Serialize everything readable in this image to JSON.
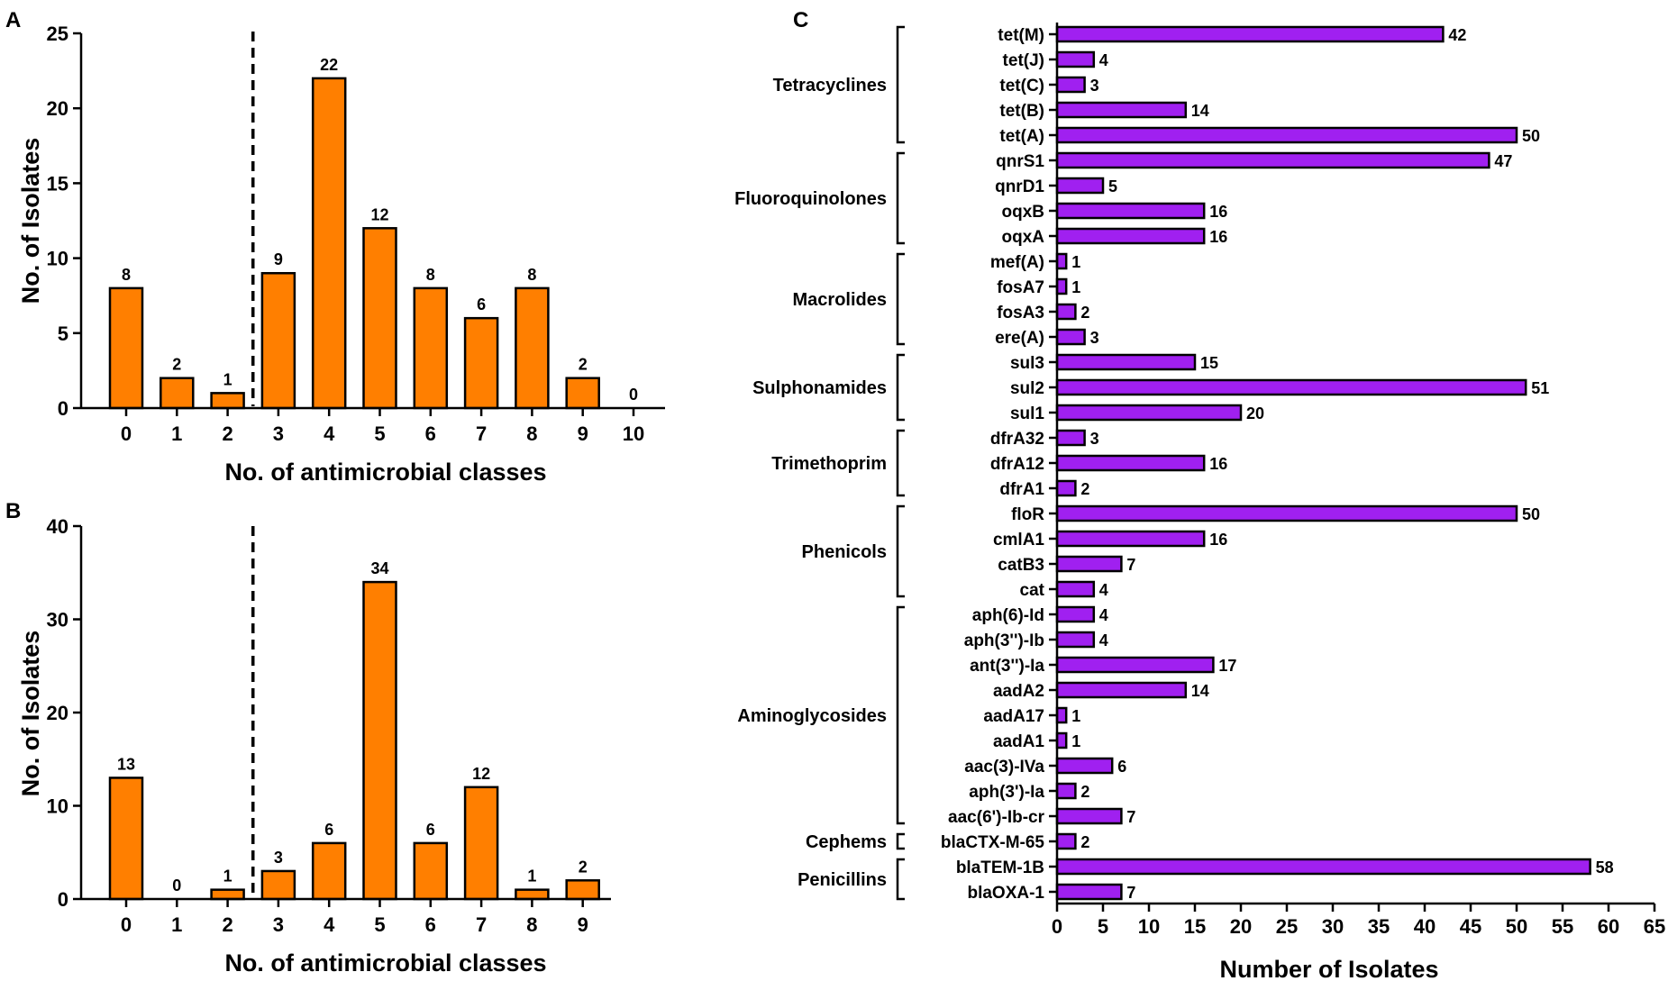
{
  "figure": {
    "panel_a_letter": "A",
    "panel_b_letter": "B",
    "panel_c_letter": "C",
    "bar_colors": {
      "orange": "#FF7F00",
      "purple": "#A020F0"
    }
  },
  "chart_data": [
    {
      "id": "A",
      "type": "bar",
      "categories": [
        "0",
        "1",
        "2",
        "3",
        "4",
        "5",
        "6",
        "7",
        "8",
        "9",
        "10"
      ],
      "values": [
        8,
        2,
        1,
        9,
        22,
        12,
        8,
        6,
        8,
        2,
        0
      ],
      "data_labels": [
        "8",
        "2",
        "1",
        "9",
        "22",
        "12",
        "8",
        "6",
        "8",
        "2",
        "0"
      ],
      "title": "",
      "xlabel": "No. of antimicrobial classes",
      "ylabel": "No. of Isolates",
      "ylim": [
        0,
        25
      ],
      "yticks": [
        "0",
        "5",
        "10",
        "15",
        "20",
        "25"
      ],
      "cutoff_between": [
        2,
        3
      ],
      "cutoff_style": "dashed vertical line",
      "color": "#FF7F00"
    },
    {
      "id": "B",
      "type": "bar",
      "categories": [
        "0",
        "1",
        "2",
        "3",
        "4",
        "5",
        "6",
        "7",
        "8",
        "9"
      ],
      "values": [
        13,
        0,
        1,
        3,
        6,
        34,
        6,
        12,
        1,
        2
      ],
      "data_labels": [
        "13",
        "0",
        "1",
        "3",
        "6",
        "34",
        "6",
        "12",
        "1",
        "2"
      ],
      "title": "",
      "xlabel": "No. of antimicrobial classes",
      "ylabel": "No. of Isolates",
      "ylim": [
        0,
        40
      ],
      "yticks": [
        "0",
        "10",
        "20",
        "30",
        "40"
      ],
      "cutoff_between": [
        2,
        3
      ],
      "cutoff_style": "dashed vertical line",
      "color": "#FF7F00"
    },
    {
      "id": "C",
      "type": "bar",
      "orientation": "horizontal",
      "categories": [
        "tet(M)",
        "tet(J)",
        "tet(C)",
        "tet(B)",
        "tet(A)",
        "qnrS1",
        "qnrD1",
        "oqxB",
        "oqxA",
        "mef(A)",
        "fosA7",
        "fosA3",
        "ere(A)",
        "sul3",
        "sul2",
        "sul1",
        "dfrA32",
        "dfrA12",
        "dfrA1",
        "floR",
        "cmlA1",
        "catB3",
        "cat",
        "aph(6)-Id",
        "aph(3'')-Ib",
        "ant(3'')-Ia",
        "aadA2",
        "aadA17",
        "aadA1",
        "aac(3)-IVa",
        "aph(3')-Ia",
        "aac(6')-Ib-cr",
        "blaCTX-M-65",
        "blaTEM-1B",
        "blaOXA-1"
      ],
      "values": [
        42,
        4,
        3,
        14,
        50,
        47,
        5,
        16,
        16,
        1,
        1,
        2,
        3,
        15,
        51,
        20,
        3,
        16,
        2,
        50,
        16,
        7,
        4,
        4,
        4,
        17,
        14,
        1,
        1,
        6,
        2,
        7,
        2,
        58,
        7
      ],
      "data_labels": [
        "42",
        "4",
        "3",
        "14",
        "50",
        "47",
        "5",
        "16",
        "16",
        "1",
        "1",
        "2",
        "3",
        "15",
        "51",
        "20",
        "3",
        "16",
        "2",
        "50",
        "16",
        "7",
        "4",
        "4",
        "4",
        "17",
        "14",
        "1",
        "1",
        "6",
        "2",
        "7",
        "2",
        "58",
        "7"
      ],
      "groups": [
        {
          "label": "Tetracyclines",
          "first": 0,
          "last": 4
        },
        {
          "label": "Fluoroquinolones",
          "first": 5,
          "last": 8
        },
        {
          "label": "Macrolides",
          "first": 9,
          "last": 12
        },
        {
          "label": "Sulphonamides",
          "first": 13,
          "last": 15
        },
        {
          "label": "Trimethoprim",
          "first": 16,
          "last": 18
        },
        {
          "label": "Phenicols",
          "first": 19,
          "last": 22
        },
        {
          "label": "Aminoglycosides",
          "first": 23,
          "last": 31
        },
        {
          "label": "Cephems",
          "first": 32,
          "last": 32
        },
        {
          "label": "Penicillins",
          "first": 33,
          "last": 34
        }
      ],
      "title": "",
      "xlabel": "Number of Isolates",
      "ylabel": "",
      "xlim": [
        0,
        65
      ],
      "xticks": [
        "0",
        "5",
        "10",
        "15",
        "20",
        "25",
        "30",
        "35",
        "40",
        "45",
        "50",
        "55",
        "60",
        "65"
      ],
      "color": "#A020F0"
    }
  ]
}
